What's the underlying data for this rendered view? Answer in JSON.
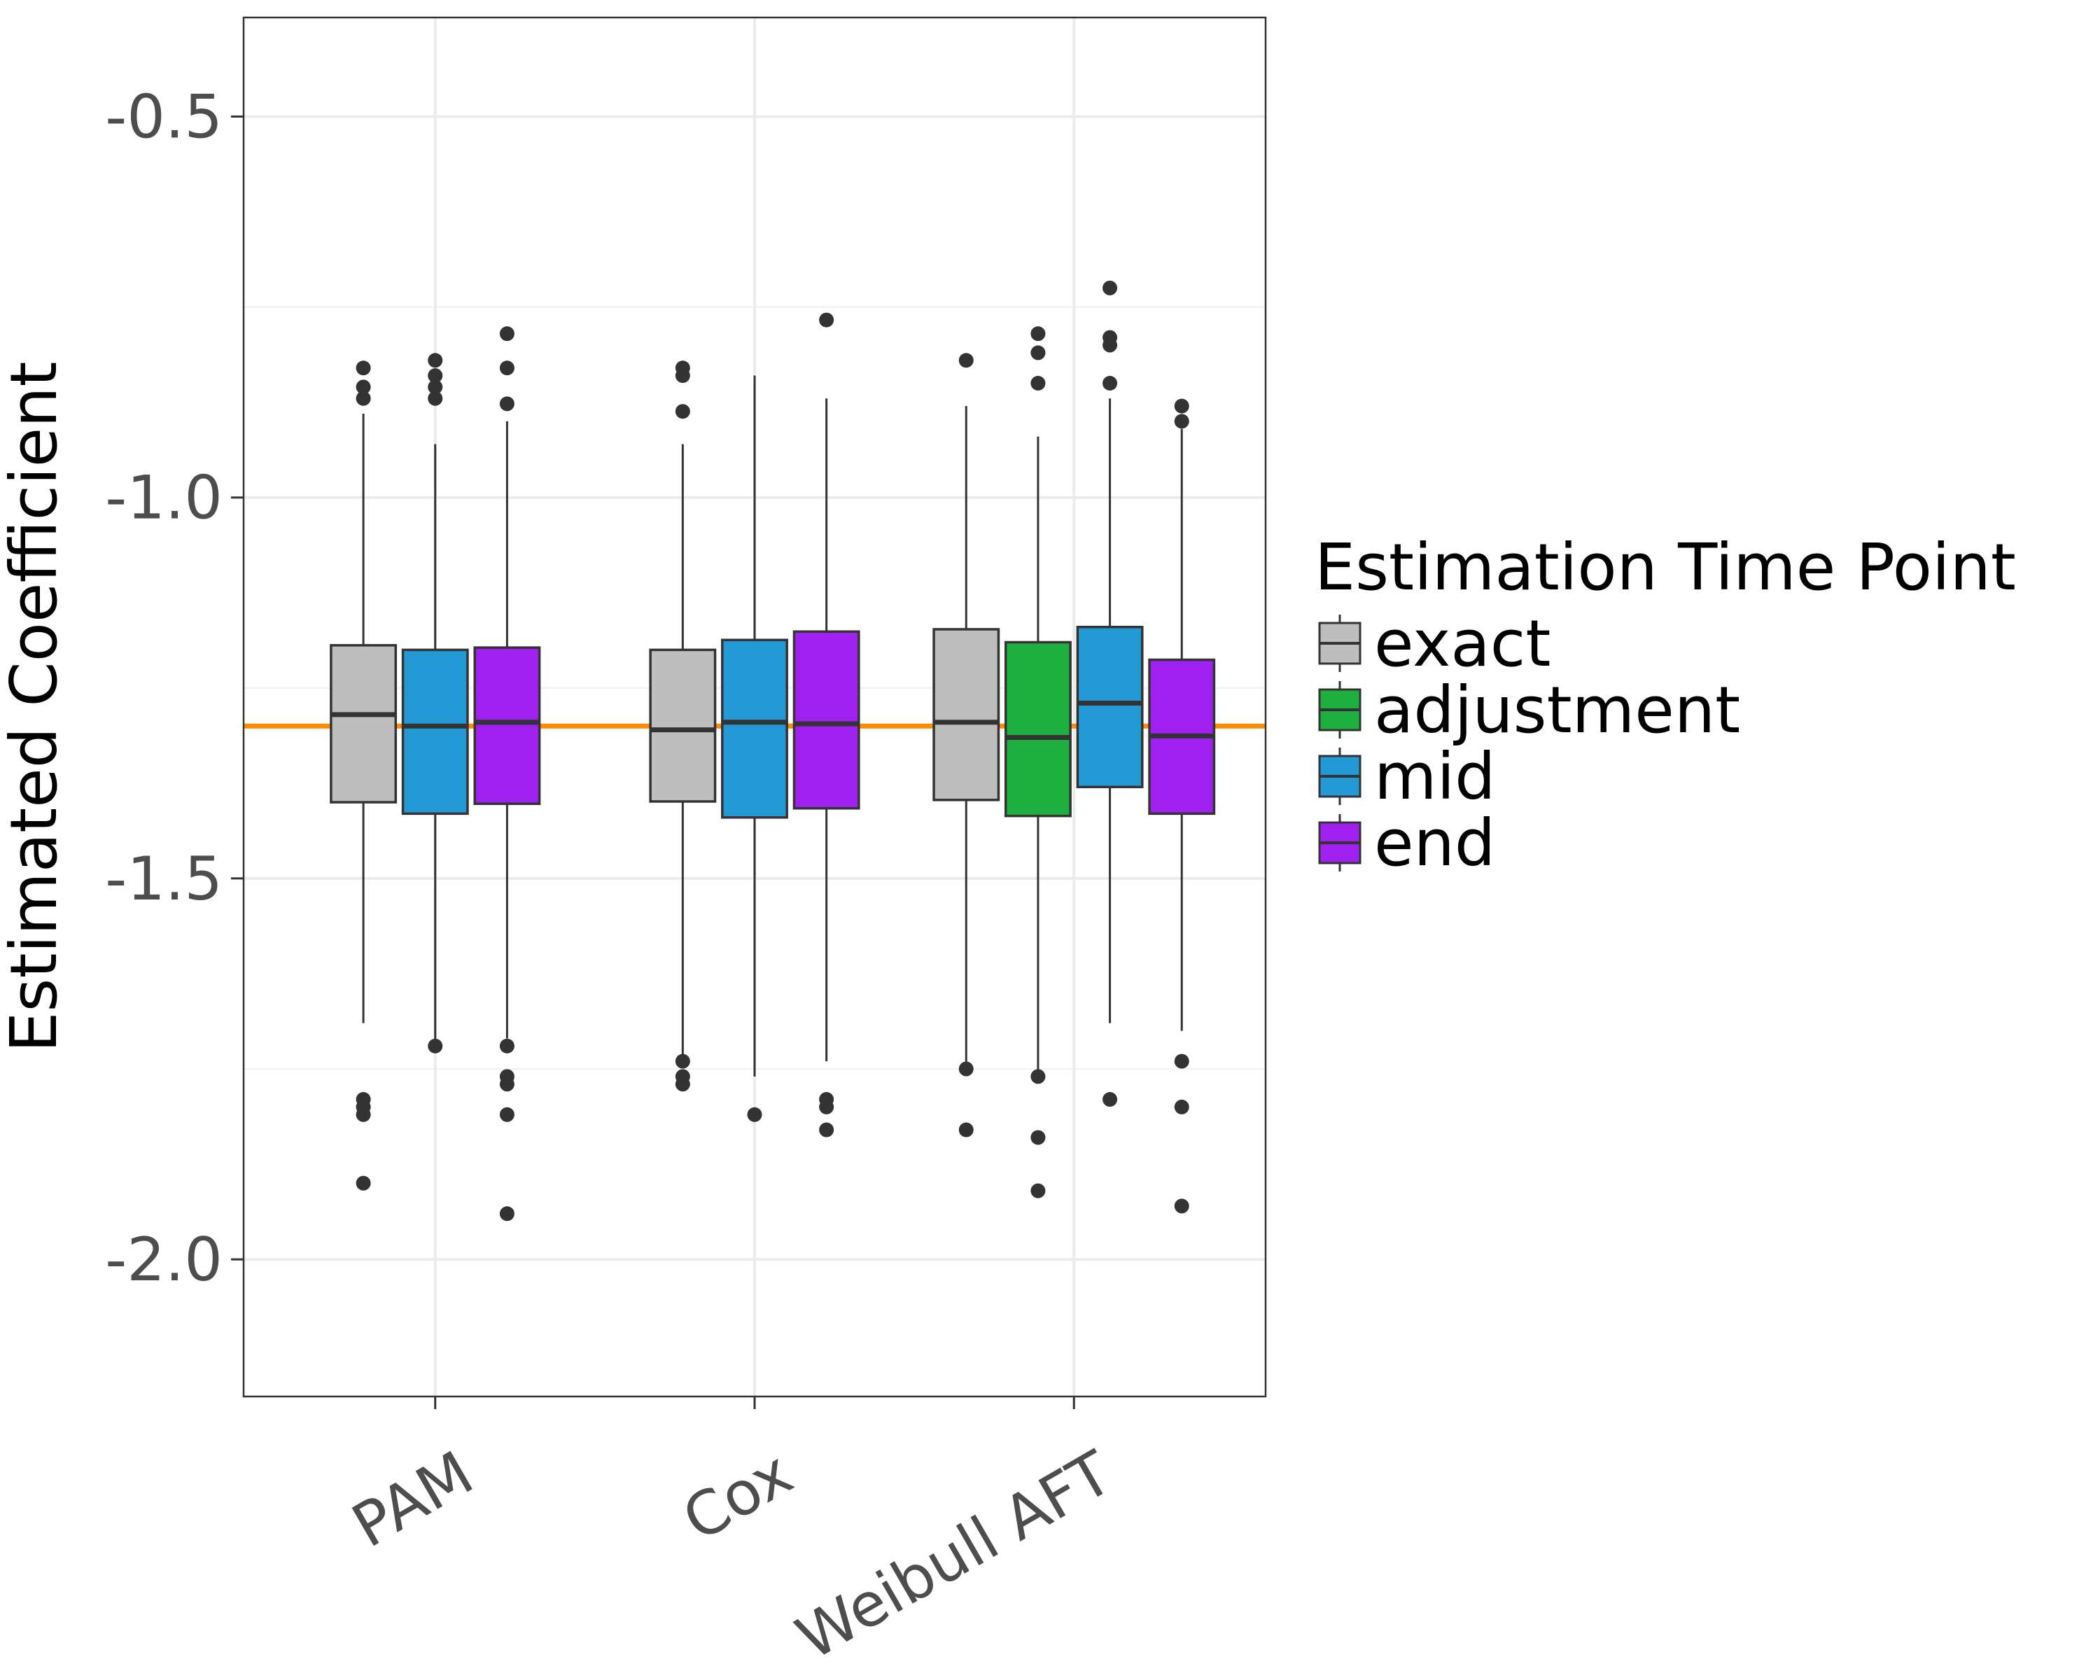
{
  "chart_data": {
    "type": "boxplot",
    "title": "",
    "xlabel": "",
    "ylabel": "Estimated Coefficient",
    "ylim": [
      -2.18,
      -0.37
    ],
    "yticks": [
      -2.0,
      -1.5,
      -1.0,
      -0.5
    ],
    "ytick_labels": [
      "-2.0",
      "-1.5",
      "-1.0",
      "-0.5"
    ],
    "reference_line": {
      "y": -1.3,
      "color": "#FF8C00"
    },
    "grid": true,
    "legend": {
      "title": "Estimation Time Point",
      "position": "right"
    },
    "categories": [
      "PAM",
      "Cox",
      "Weibull AFT"
    ],
    "series": [
      {
        "name": "exact",
        "color": "#BEBEBE"
      },
      {
        "name": "adjustment",
        "color": "#1FAF40"
      },
      {
        "name": "mid",
        "color": "#2299D4"
      },
      {
        "name": "end",
        "color": "#A020F0"
      }
    ],
    "boxes": [
      {
        "category": "PAM",
        "series": "exact",
        "whisker_low": -1.69,
        "q1": -1.4,
        "median": -1.285,
        "q3": -1.194,
        "whisker_high": -0.89,
        "outliers": [
          -0.83,
          -0.855,
          -0.87,
          -1.79,
          -1.8,
          -1.81,
          -1.9
        ]
      },
      {
        "category": "PAM",
        "series": "mid",
        "whisker_low": -1.72,
        "q1": -1.415,
        "median": -1.3,
        "q3": -1.2,
        "whisker_high": -0.93,
        "outliers": [
          -0.82,
          -0.84,
          -0.855,
          -0.87,
          -1.72
        ]
      },
      {
        "category": "PAM",
        "series": "end",
        "whisker_low": -1.71,
        "q1": -1.402,
        "median": -1.295,
        "q3": -1.197,
        "whisker_high": -0.9,
        "outliers": [
          -0.785,
          -0.83,
          -0.877,
          -1.72,
          -1.76,
          -1.77,
          -1.81,
          -1.94
        ]
      },
      {
        "category": "Cox",
        "series": "exact",
        "whisker_low": -1.74,
        "q1": -1.399,
        "median": -1.305,
        "q3": -1.2,
        "whisker_high": -0.93,
        "outliers": [
          -0.83,
          -0.84,
          -0.887,
          -1.74,
          -1.76,
          -1.77
        ]
      },
      {
        "category": "Cox",
        "series": "mid",
        "whisker_low": -1.76,
        "q1": -1.42,
        "median": -1.295,
        "q3": -1.187,
        "whisker_high": -0.84,
        "outliers": [
          -1.81
        ]
      },
      {
        "category": "Cox",
        "series": "end",
        "whisker_low": -1.74,
        "q1": -1.408,
        "median": -1.297,
        "q3": -1.176,
        "whisker_high": -0.87,
        "outliers": [
          -0.767,
          -1.79,
          -1.8,
          -1.83
        ]
      },
      {
        "category": "Weibull AFT",
        "series": "exact",
        "whisker_low": -1.75,
        "q1": -1.397,
        "median": -1.295,
        "q3": -1.173,
        "whisker_high": -0.88,
        "outliers": [
          -0.82,
          -1.75,
          -1.83
        ]
      },
      {
        "category": "Weibull AFT",
        "series": "adjustment",
        "whisker_low": -1.76,
        "q1": -1.418,
        "median": -1.315,
        "q3": -1.19,
        "whisker_high": -0.92,
        "outliers": [
          -0.785,
          -0.81,
          -0.85,
          -1.76,
          -1.84,
          -1.91
        ]
      },
      {
        "category": "Weibull AFT",
        "series": "mid",
        "whisker_low": -1.69,
        "q1": -1.38,
        "median": -1.27,
        "q3": -1.17,
        "whisker_high": -0.87,
        "outliers": [
          -0.725,
          -0.79,
          -0.8,
          -0.85,
          -1.79
        ]
      },
      {
        "category": "Weibull AFT",
        "series": "end",
        "whisker_low": -1.7,
        "q1": -1.415,
        "median": -1.313,
        "q3": -1.213,
        "whisker_high": -0.91,
        "outliers": [
          -0.88,
          -0.9,
          -1.74,
          -1.8,
          -1.93
        ]
      }
    ]
  }
}
